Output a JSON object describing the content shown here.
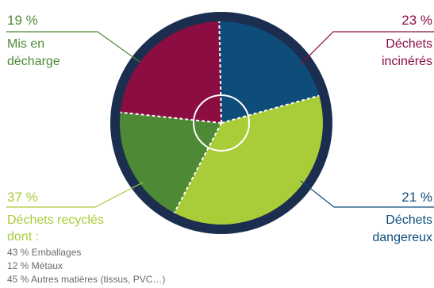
{
  "chart_data": {
    "type": "pie",
    "slices": [
      {
        "name_lines": [
          "Déchets",
          "incinérés"
        ],
        "value": 23,
        "pct_label": "23 %",
        "color": "#8c0d42"
      },
      {
        "name_lines": [
          "Déchets",
          "dangereux"
        ],
        "value": 21,
        "pct_label": "21 %",
        "color": "#0e4c7a"
      },
      {
        "name_lines": [
          "Déchets recyclés",
          "dont :"
        ],
        "value": 37,
        "pct_label": "37 %",
        "color": "#a9cc39"
      },
      {
        "name_lines": [
          "Mis en",
          "décharge"
        ],
        "value": 19,
        "pct_label": "19 %",
        "color": "#4e8a35"
      }
    ],
    "recycled_breakdown": [
      {
        "value": 43,
        "label": "43 % Emballages"
      },
      {
        "value": 12,
        "label": "12 % Métaux"
      },
      {
        "value": 45,
        "label": "45 % Autres matières (tissus, PVC…)"
      }
    ],
    "ring_color": "#1c2e4f",
    "note_color": "#6b6b6b"
  }
}
